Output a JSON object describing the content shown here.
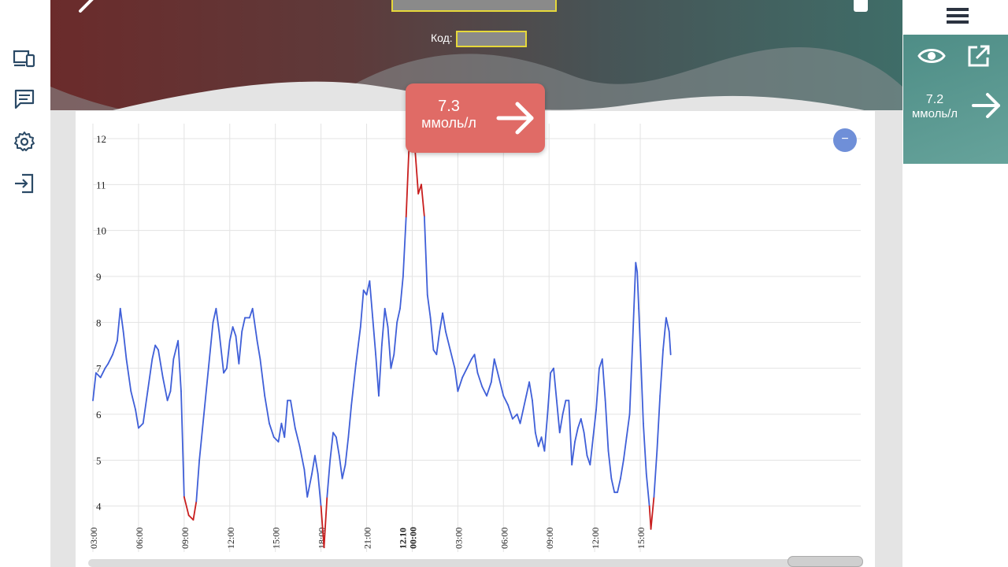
{
  "header": {
    "code_label": "Код:"
  },
  "badge": {
    "value": "7.3",
    "unit": "ммоль/л"
  },
  "right_panel": {
    "value": "7.2",
    "unit": "ммоль/л"
  },
  "minus_button_label": "−",
  "icons": {
    "sidebar": [
      "devices-icon",
      "chat-icon",
      "gear-icon",
      "logout-icon"
    ],
    "right": [
      "menu-icon",
      "eye-icon",
      "external-link-icon",
      "arrow-right-icon"
    ]
  },
  "colors": {
    "line": "#3f5fd8",
    "low_high": "#c81e1e",
    "badge": "#e06b66",
    "grid": "#e3e3e3"
  },
  "chart_data": {
    "type": "line",
    "title": "",
    "xlabel": "",
    "ylabel": "",
    "ylim": [
      3.0,
      12.6
    ],
    "yticks": [
      4,
      5,
      6,
      7,
      8,
      9,
      10,
      11,
      12
    ],
    "x_range_hours": [
      3,
      53.5
    ],
    "xticks": [
      {
        "h": 3,
        "label": "03:00"
      },
      {
        "h": 6,
        "label": "06:00"
      },
      {
        "h": 9,
        "label": "09:00"
      },
      {
        "h": 12,
        "label": "12:00"
      },
      {
        "h": 15,
        "label": "15:00"
      },
      {
        "h": 18,
        "label": "18:00"
      },
      {
        "h": 21,
        "label": "21:00"
      },
      {
        "h": 24,
        "label": "00:00",
        "date": "12.10"
      },
      {
        "h": 27,
        "label": "03:00"
      },
      {
        "h": 30,
        "label": "06:00"
      },
      {
        "h": 33,
        "label": "09:00"
      },
      {
        "h": 36,
        "label": "12:00"
      },
      {
        "h": 39,
        "label": "15:00"
      }
    ],
    "thresholds": {
      "low": 4.2,
      "high": 10.3
    },
    "series": [
      {
        "points": [
          [
            3.0,
            6.3
          ],
          [
            3.2,
            6.9
          ],
          [
            3.5,
            6.8
          ],
          [
            3.8,
            7.0
          ],
          [
            4.0,
            7.1
          ],
          [
            4.3,
            7.3
          ],
          [
            4.6,
            7.6
          ],
          [
            4.8,
            8.3
          ],
          [
            5.0,
            7.8
          ],
          [
            5.2,
            7.2
          ],
          [
            5.5,
            6.5
          ],
          [
            5.8,
            6.1
          ],
          [
            6.0,
            5.7
          ],
          [
            6.3,
            5.8
          ],
          [
            6.6,
            6.5
          ],
          [
            6.9,
            7.2
          ],
          [
            7.1,
            7.5
          ],
          [
            7.3,
            7.4
          ],
          [
            7.6,
            6.8
          ],
          [
            7.9,
            6.3
          ],
          [
            8.1,
            6.5
          ],
          [
            8.3,
            7.2
          ],
          [
            8.6,
            7.6
          ],
          [
            8.8,
            6.5
          ],
          [
            9.0,
            4.2
          ],
          [
            9.3,
            3.8
          ],
          [
            9.6,
            3.7
          ],
          [
            9.8,
            4.1
          ],
          [
            10.0,
            5.0
          ],
          [
            10.3,
            6.0
          ],
          [
            10.6,
            7.0
          ],
          [
            10.9,
            8.0
          ],
          [
            11.1,
            8.3
          ],
          [
            11.3,
            7.8
          ],
          [
            11.6,
            6.9
          ],
          [
            11.8,
            7.0
          ],
          [
            12.0,
            7.6
          ],
          [
            12.2,
            7.9
          ],
          [
            12.4,
            7.7
          ],
          [
            12.6,
            7.1
          ],
          [
            12.8,
            7.8
          ],
          [
            13.0,
            8.1
          ],
          [
            13.3,
            8.1
          ],
          [
            13.5,
            8.3
          ],
          [
            13.8,
            7.6
          ],
          [
            14.0,
            7.2
          ],
          [
            14.3,
            6.4
          ],
          [
            14.6,
            5.8
          ],
          [
            14.9,
            5.5
          ],
          [
            15.2,
            5.4
          ],
          [
            15.4,
            5.8
          ],
          [
            15.6,
            5.5
          ],
          [
            15.8,
            6.3
          ],
          [
            16.0,
            6.3
          ],
          [
            16.3,
            5.7
          ],
          [
            16.6,
            5.3
          ],
          [
            16.9,
            4.8
          ],
          [
            17.1,
            4.2
          ],
          [
            17.4,
            4.7
          ],
          [
            17.6,
            5.1
          ],
          [
            17.8,
            4.7
          ],
          [
            18.0,
            4.0
          ],
          [
            18.2,
            3.1
          ],
          [
            18.4,
            4.2
          ],
          [
            18.6,
            5.0
          ],
          [
            18.8,
            5.6
          ],
          [
            19.0,
            5.5
          ],
          [
            19.2,
            5.1
          ],
          [
            19.4,
            4.6
          ],
          [
            19.6,
            4.9
          ],
          [
            19.8,
            5.5
          ],
          [
            20.0,
            6.2
          ],
          [
            20.3,
            7.1
          ],
          [
            20.6,
            7.9
          ],
          [
            20.8,
            8.7
          ],
          [
            21.0,
            8.6
          ],
          [
            21.2,
            8.9
          ],
          [
            21.4,
            8.1
          ],
          [
            21.6,
            7.3
          ],
          [
            21.8,
            6.4
          ],
          [
            22.0,
            7.5
          ],
          [
            22.2,
            8.3
          ],
          [
            22.4,
            7.9
          ],
          [
            22.6,
            7.0
          ],
          [
            22.8,
            7.3
          ],
          [
            23.0,
            8.0
          ],
          [
            23.2,
            8.3
          ],
          [
            23.4,
            9.0
          ],
          [
            23.6,
            10.3
          ],
          [
            23.8,
            11.9
          ],
          [
            23.9,
            12.6
          ],
          [
            24.0,
            11.8
          ],
          [
            24.2,
            11.7
          ],
          [
            24.4,
            10.8
          ],
          [
            24.6,
            11.0
          ],
          [
            24.8,
            10.3
          ],
          [
            25.0,
            8.6
          ],
          [
            25.2,
            8.1
          ],
          [
            25.4,
            7.4
          ],
          [
            25.6,
            7.3
          ],
          [
            25.8,
            7.8
          ],
          [
            26.0,
            8.2
          ],
          [
            26.2,
            7.8
          ],
          [
            26.5,
            7.4
          ],
          [
            26.8,
            7.0
          ],
          [
            27.0,
            6.5
          ],
          [
            27.3,
            6.8
          ],
          [
            27.6,
            7.0
          ],
          [
            27.9,
            7.2
          ],
          [
            28.1,
            7.3
          ],
          [
            28.3,
            6.9
          ],
          [
            28.6,
            6.6
          ],
          [
            28.9,
            6.4
          ],
          [
            29.2,
            6.7
          ],
          [
            29.4,
            7.2
          ],
          [
            29.7,
            6.8
          ],
          [
            30.0,
            6.4
          ],
          [
            30.3,
            6.2
          ],
          [
            30.6,
            5.9
          ],
          [
            30.9,
            6.0
          ],
          [
            31.1,
            5.8
          ],
          [
            31.3,
            6.1
          ],
          [
            31.5,
            6.4
          ],
          [
            31.7,
            6.7
          ],
          [
            31.9,
            6.3
          ],
          [
            32.1,
            5.6
          ],
          [
            32.3,
            5.3
          ],
          [
            32.5,
            5.5
          ],
          [
            32.7,
            5.2
          ],
          [
            32.9,
            6.0
          ],
          [
            33.1,
            6.9
          ],
          [
            33.3,
            7.0
          ],
          [
            33.5,
            6.3
          ],
          [
            33.7,
            5.6
          ],
          [
            33.9,
            6.0
          ],
          [
            34.1,
            6.3
          ],
          [
            34.3,
            6.3
          ],
          [
            34.5,
            4.9
          ],
          [
            34.7,
            5.4
          ],
          [
            34.9,
            5.7
          ],
          [
            35.1,
            5.9
          ],
          [
            35.3,
            5.6
          ],
          [
            35.5,
            5.1
          ],
          [
            35.7,
            4.9
          ],
          [
            35.9,
            5.5
          ],
          [
            36.1,
            6.1
          ],
          [
            36.3,
            7.0
          ],
          [
            36.5,
            7.2
          ],
          [
            36.7,
            6.3
          ],
          [
            36.9,
            5.2
          ],
          [
            37.1,
            4.6
          ],
          [
            37.3,
            4.3
          ],
          [
            37.5,
            4.3
          ],
          [
            37.7,
            4.6
          ],
          [
            37.9,
            5.0
          ],
          [
            38.1,
            5.5
          ],
          [
            38.3,
            6.0
          ],
          [
            38.5,
            7.6
          ],
          [
            38.7,
            9.3
          ],
          [
            38.8,
            9.1
          ],
          [
            38.9,
            8.3
          ],
          [
            39.0,
            7.5
          ],
          [
            39.2,
            5.8
          ],
          [
            39.4,
            4.7
          ],
          [
            39.6,
            4.0
          ],
          [
            39.7,
            3.5
          ],
          [
            39.9,
            4.2
          ],
          [
            40.1,
            5.2
          ],
          [
            40.3,
            6.4
          ],
          [
            40.5,
            7.4
          ],
          [
            40.7,
            8.1
          ],
          [
            40.9,
            7.8
          ],
          [
            41.0,
            7.3
          ]
        ]
      }
    ]
  }
}
